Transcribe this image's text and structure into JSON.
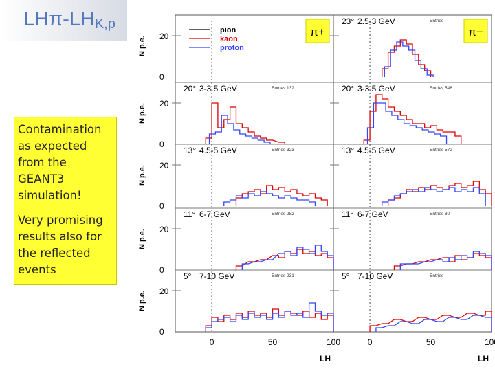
{
  "slide": {
    "title_main": "LHπ-LH",
    "title_sub": "K,p",
    "note_lines_1": [
      "Contamination",
      "as expected",
      "from the",
      "GEANT3",
      "simulation!"
    ],
    "note_lines_2": [
      "Very promising",
      "results also for",
      "the reflected",
      "events"
    ]
  },
  "chart_data": {
    "type": "line",
    "title": "",
    "xlabel": "LH",
    "ylabel": "N p.e.",
    "xlim": [
      -30,
      100
    ],
    "ylim": [
      0,
      30
    ],
    "x_ticks": [
      "0",
      "50",
      "100"
    ],
    "y_ticks": [
      "0",
      "20"
    ],
    "legend": {
      "placement": "top-left of first panel",
      "entries": [
        {
          "name": "pion",
          "color": "#000000"
        },
        {
          "name": "kaon",
          "color": "#dd0000"
        },
        {
          "name": "proton",
          "color": "#3344ff"
        }
      ]
    },
    "column_labels": [
      "π+",
      "π−"
    ],
    "series_colors": {
      "pion": "#000000",
      "kaon": "#dd0000",
      "proton": "#3344ff"
    },
    "panels": [
      {
        "col": 0,
        "row": 0,
        "angle": "",
        "range": "",
        "stats": "",
        "kaon": [],
        "proton": []
      },
      {
        "col": 1,
        "row": 0,
        "angle": "23°",
        "range": "2.5-3 GeV",
        "stats": "Entries",
        "kaon": [
          [
            10,
            4
          ],
          [
            15,
            12
          ],
          [
            20,
            15
          ],
          [
            25,
            18
          ],
          [
            30,
            16
          ],
          [
            35,
            11
          ],
          [
            40,
            6
          ],
          [
            45,
            3
          ]
        ],
        "proton": [
          [
            12,
            5
          ],
          [
            17,
            13
          ],
          [
            22,
            17
          ],
          [
            27,
            15
          ],
          [
            32,
            13
          ],
          [
            37,
            8
          ],
          [
            42,
            4
          ],
          [
            47,
            1
          ]
        ]
      },
      {
        "col": 0,
        "row": 1,
        "angle": "20°",
        "range": "3-3.5 GeV",
        "stats": "Entries 132",
        "kaon": [
          [
            -5,
            3
          ],
          [
            0,
            20
          ],
          [
            5,
            8
          ],
          [
            10,
            12
          ],
          [
            15,
            18
          ],
          [
            20,
            10
          ],
          [
            25,
            8
          ],
          [
            30,
            6
          ],
          [
            35,
            4
          ],
          [
            40,
            3
          ],
          [
            45,
            2
          ],
          [
            55,
            1
          ]
        ],
        "proton": [
          [
            -2,
            5
          ],
          [
            3,
            6
          ],
          [
            8,
            14
          ],
          [
            13,
            10
          ],
          [
            18,
            7
          ],
          [
            23,
            5
          ],
          [
            28,
            4
          ],
          [
            33,
            3
          ],
          [
            38,
            2
          ],
          [
            43,
            1
          ]
        ]
      },
      {
        "col": 1,
        "row": 1,
        "angle": "20°",
        "range": "3-3.5 GeV",
        "stats": "Entries 548",
        "kaon": [
          [
            -5,
            2
          ],
          [
            0,
            16
          ],
          [
            5,
            24
          ],
          [
            10,
            22
          ],
          [
            15,
            18
          ],
          [
            20,
            16
          ],
          [
            25,
            14
          ],
          [
            30,
            12
          ],
          [
            35,
            10
          ],
          [
            40,
            10
          ],
          [
            45,
            8
          ],
          [
            50,
            9
          ],
          [
            55,
            7
          ],
          [
            60,
            6
          ],
          [
            65,
            6
          ],
          [
            70,
            4
          ]
        ],
        "proton": [
          [
            -2,
            8
          ],
          [
            3,
            20
          ],
          [
            8,
            20
          ],
          [
            13,
            16
          ],
          [
            18,
            14
          ],
          [
            23,
            12
          ],
          [
            28,
            10
          ],
          [
            33,
            9
          ],
          [
            38,
            8
          ],
          [
            43,
            7
          ],
          [
            48,
            6
          ],
          [
            53,
            5
          ],
          [
            58,
            4
          ]
        ]
      },
      {
        "col": 0,
        "row": 2,
        "angle": "13°",
        "range": "4.5-5 GeV",
        "stats": "Entries 323",
        "kaon": [
          [
            20,
            4
          ],
          [
            25,
            6
          ],
          [
            30,
            7
          ],
          [
            35,
            8
          ],
          [
            40,
            6
          ],
          [
            45,
            10
          ],
          [
            50,
            8
          ],
          [
            55,
            9
          ],
          [
            60,
            7
          ],
          [
            65,
            8
          ],
          [
            70,
            6
          ],
          [
            75,
            5
          ],
          [
            80,
            6
          ],
          [
            85,
            4
          ],
          [
            90,
            3
          ]
        ],
        "proton": [
          [
            10,
            2
          ],
          [
            15,
            3
          ],
          [
            20,
            5
          ],
          [
            25,
            4
          ],
          [
            30,
            6
          ],
          [
            35,
            5
          ],
          [
            40,
            7
          ],
          [
            45,
            6
          ],
          [
            50,
            5
          ],
          [
            55,
            4
          ],
          [
            60,
            5
          ],
          [
            65,
            4
          ],
          [
            70,
            3
          ],
          [
            75,
            3
          ],
          [
            80,
            2
          ]
        ]
      },
      {
        "col": 1,
        "row": 2,
        "angle": "13°",
        "range": "4.5-5 GeV",
        "stats": "Entries 572",
        "kaon": [
          [
            15,
            3
          ],
          [
            20,
            4
          ],
          [
            25,
            6
          ],
          [
            30,
            8
          ],
          [
            35,
            7
          ],
          [
            40,
            9
          ],
          [
            45,
            8
          ],
          [
            50,
            10
          ],
          [
            55,
            9
          ],
          [
            60,
            8
          ],
          [
            65,
            10
          ],
          [
            70,
            11
          ],
          [
            75,
            9
          ],
          [
            80,
            10
          ],
          [
            85,
            12
          ],
          [
            90,
            8
          ],
          [
            95,
            6
          ]
        ],
        "proton": [
          [
            10,
            2
          ],
          [
            15,
            3
          ],
          [
            20,
            5
          ],
          [
            25,
            6
          ],
          [
            30,
            7
          ],
          [
            35,
            8
          ],
          [
            40,
            7
          ],
          [
            45,
            9
          ],
          [
            50,
            8
          ],
          [
            55,
            7
          ],
          [
            60,
            8
          ],
          [
            65,
            9
          ],
          [
            70,
            7
          ],
          [
            75,
            8
          ],
          [
            80,
            7
          ],
          [
            85,
            9
          ],
          [
            90,
            6
          ]
        ]
      },
      {
        "col": 0,
        "row": 3,
        "angle": "11°",
        "range": "6-7 GeV",
        "stats": "Entries 282",
        "kaon": [
          [
            20,
            2
          ],
          [
            30,
            4
          ],
          [
            40,
            5
          ],
          [
            50,
            7
          ],
          [
            55,
            6
          ],
          [
            60,
            9
          ],
          [
            65,
            8
          ],
          [
            70,
            10
          ],
          [
            75,
            8
          ],
          [
            80,
            9
          ],
          [
            85,
            7
          ],
          [
            90,
            8
          ],
          [
            95,
            6
          ]
        ],
        "proton": [
          [
            25,
            3
          ],
          [
            35,
            4
          ],
          [
            45,
            5
          ],
          [
            55,
            8
          ],
          [
            60,
            9
          ],
          [
            65,
            7
          ],
          [
            70,
            11
          ],
          [
            75,
            10
          ],
          [
            80,
            8
          ],
          [
            85,
            12
          ],
          [
            90,
            9
          ],
          [
            95,
            7
          ]
        ]
      },
      {
        "col": 1,
        "row": 3,
        "angle": "11°",
        "range": "6-7 GeV",
        "stats": "Entries 80",
        "kaon": [
          [
            20,
            2
          ],
          [
            30,
            3
          ],
          [
            40,
            4
          ],
          [
            50,
            5
          ],
          [
            60,
            6
          ],
          [
            65,
            4
          ],
          [
            70,
            7
          ],
          [
            75,
            5
          ],
          [
            80,
            6
          ],
          [
            85,
            8
          ],
          [
            90,
            7
          ],
          [
            95,
            6
          ]
        ],
        "proton": [
          [
            25,
            3
          ],
          [
            35,
            3
          ],
          [
            45,
            4
          ],
          [
            55,
            5
          ],
          [
            60,
            4
          ],
          [
            65,
            6
          ],
          [
            70,
            5
          ],
          [
            75,
            7
          ],
          [
            80,
            6
          ],
          [
            85,
            9
          ],
          [
            90,
            8
          ],
          [
            95,
            7
          ]
        ]
      },
      {
        "col": 0,
        "row": 4,
        "angle": "5°",
        "range": "7-10 GeV",
        "stats": "Entries 231",
        "kaon": [
          [
            -5,
            3
          ],
          [
            0,
            7
          ],
          [
            5,
            5
          ],
          [
            10,
            8
          ],
          [
            15,
            6
          ],
          [
            20,
            9
          ],
          [
            25,
            7
          ],
          [
            30,
            10
          ],
          [
            35,
            8
          ],
          [
            40,
            9
          ],
          [
            45,
            7
          ],
          [
            50,
            11
          ],
          [
            55,
            8
          ],
          [
            60,
            10
          ],
          [
            65,
            9
          ],
          [
            70,
            8
          ],
          [
            75,
            10
          ],
          [
            80,
            7
          ],
          [
            85,
            9
          ],
          [
            90,
            6
          ],
          [
            95,
            8
          ]
        ],
        "proton": [
          [
            -5,
            2
          ],
          [
            0,
            5
          ],
          [
            5,
            6
          ],
          [
            10,
            7
          ],
          [
            15,
            5
          ],
          [
            20,
            8
          ],
          [
            25,
            6
          ],
          [
            30,
            9
          ],
          [
            35,
            7
          ],
          [
            40,
            8
          ],
          [
            45,
            6
          ],
          [
            50,
            9
          ],
          [
            55,
            7
          ],
          [
            60,
            10
          ],
          [
            65,
            8
          ],
          [
            70,
            9
          ],
          [
            75,
            7
          ],
          [
            80,
            14
          ],
          [
            85,
            10
          ],
          [
            90,
            8
          ],
          [
            95,
            9
          ]
        ]
      },
      {
        "col": 1,
        "row": 4,
        "angle": "5°",
        "range": "7-10 GeV",
        "stats": "Entries",
        "kaon": [
          [
            0,
            3
          ],
          [
            10,
            4
          ],
          [
            20,
            6
          ],
          [
            30,
            5
          ],
          [
            40,
            7
          ],
          [
            50,
            6
          ],
          [
            60,
            8
          ],
          [
            70,
            7
          ],
          [
            80,
            9
          ],
          [
            90,
            8
          ],
          [
            95,
            10
          ]
        ],
        "proton": [
          [
            5,
            2
          ],
          [
            15,
            3
          ],
          [
            25,
            5
          ],
          [
            35,
            4
          ],
          [
            45,
            6
          ],
          [
            55,
            5
          ],
          [
            65,
            7
          ],
          [
            75,
            6
          ],
          [
            85,
            8
          ],
          [
            95,
            7
          ]
        ]
      }
    ]
  }
}
